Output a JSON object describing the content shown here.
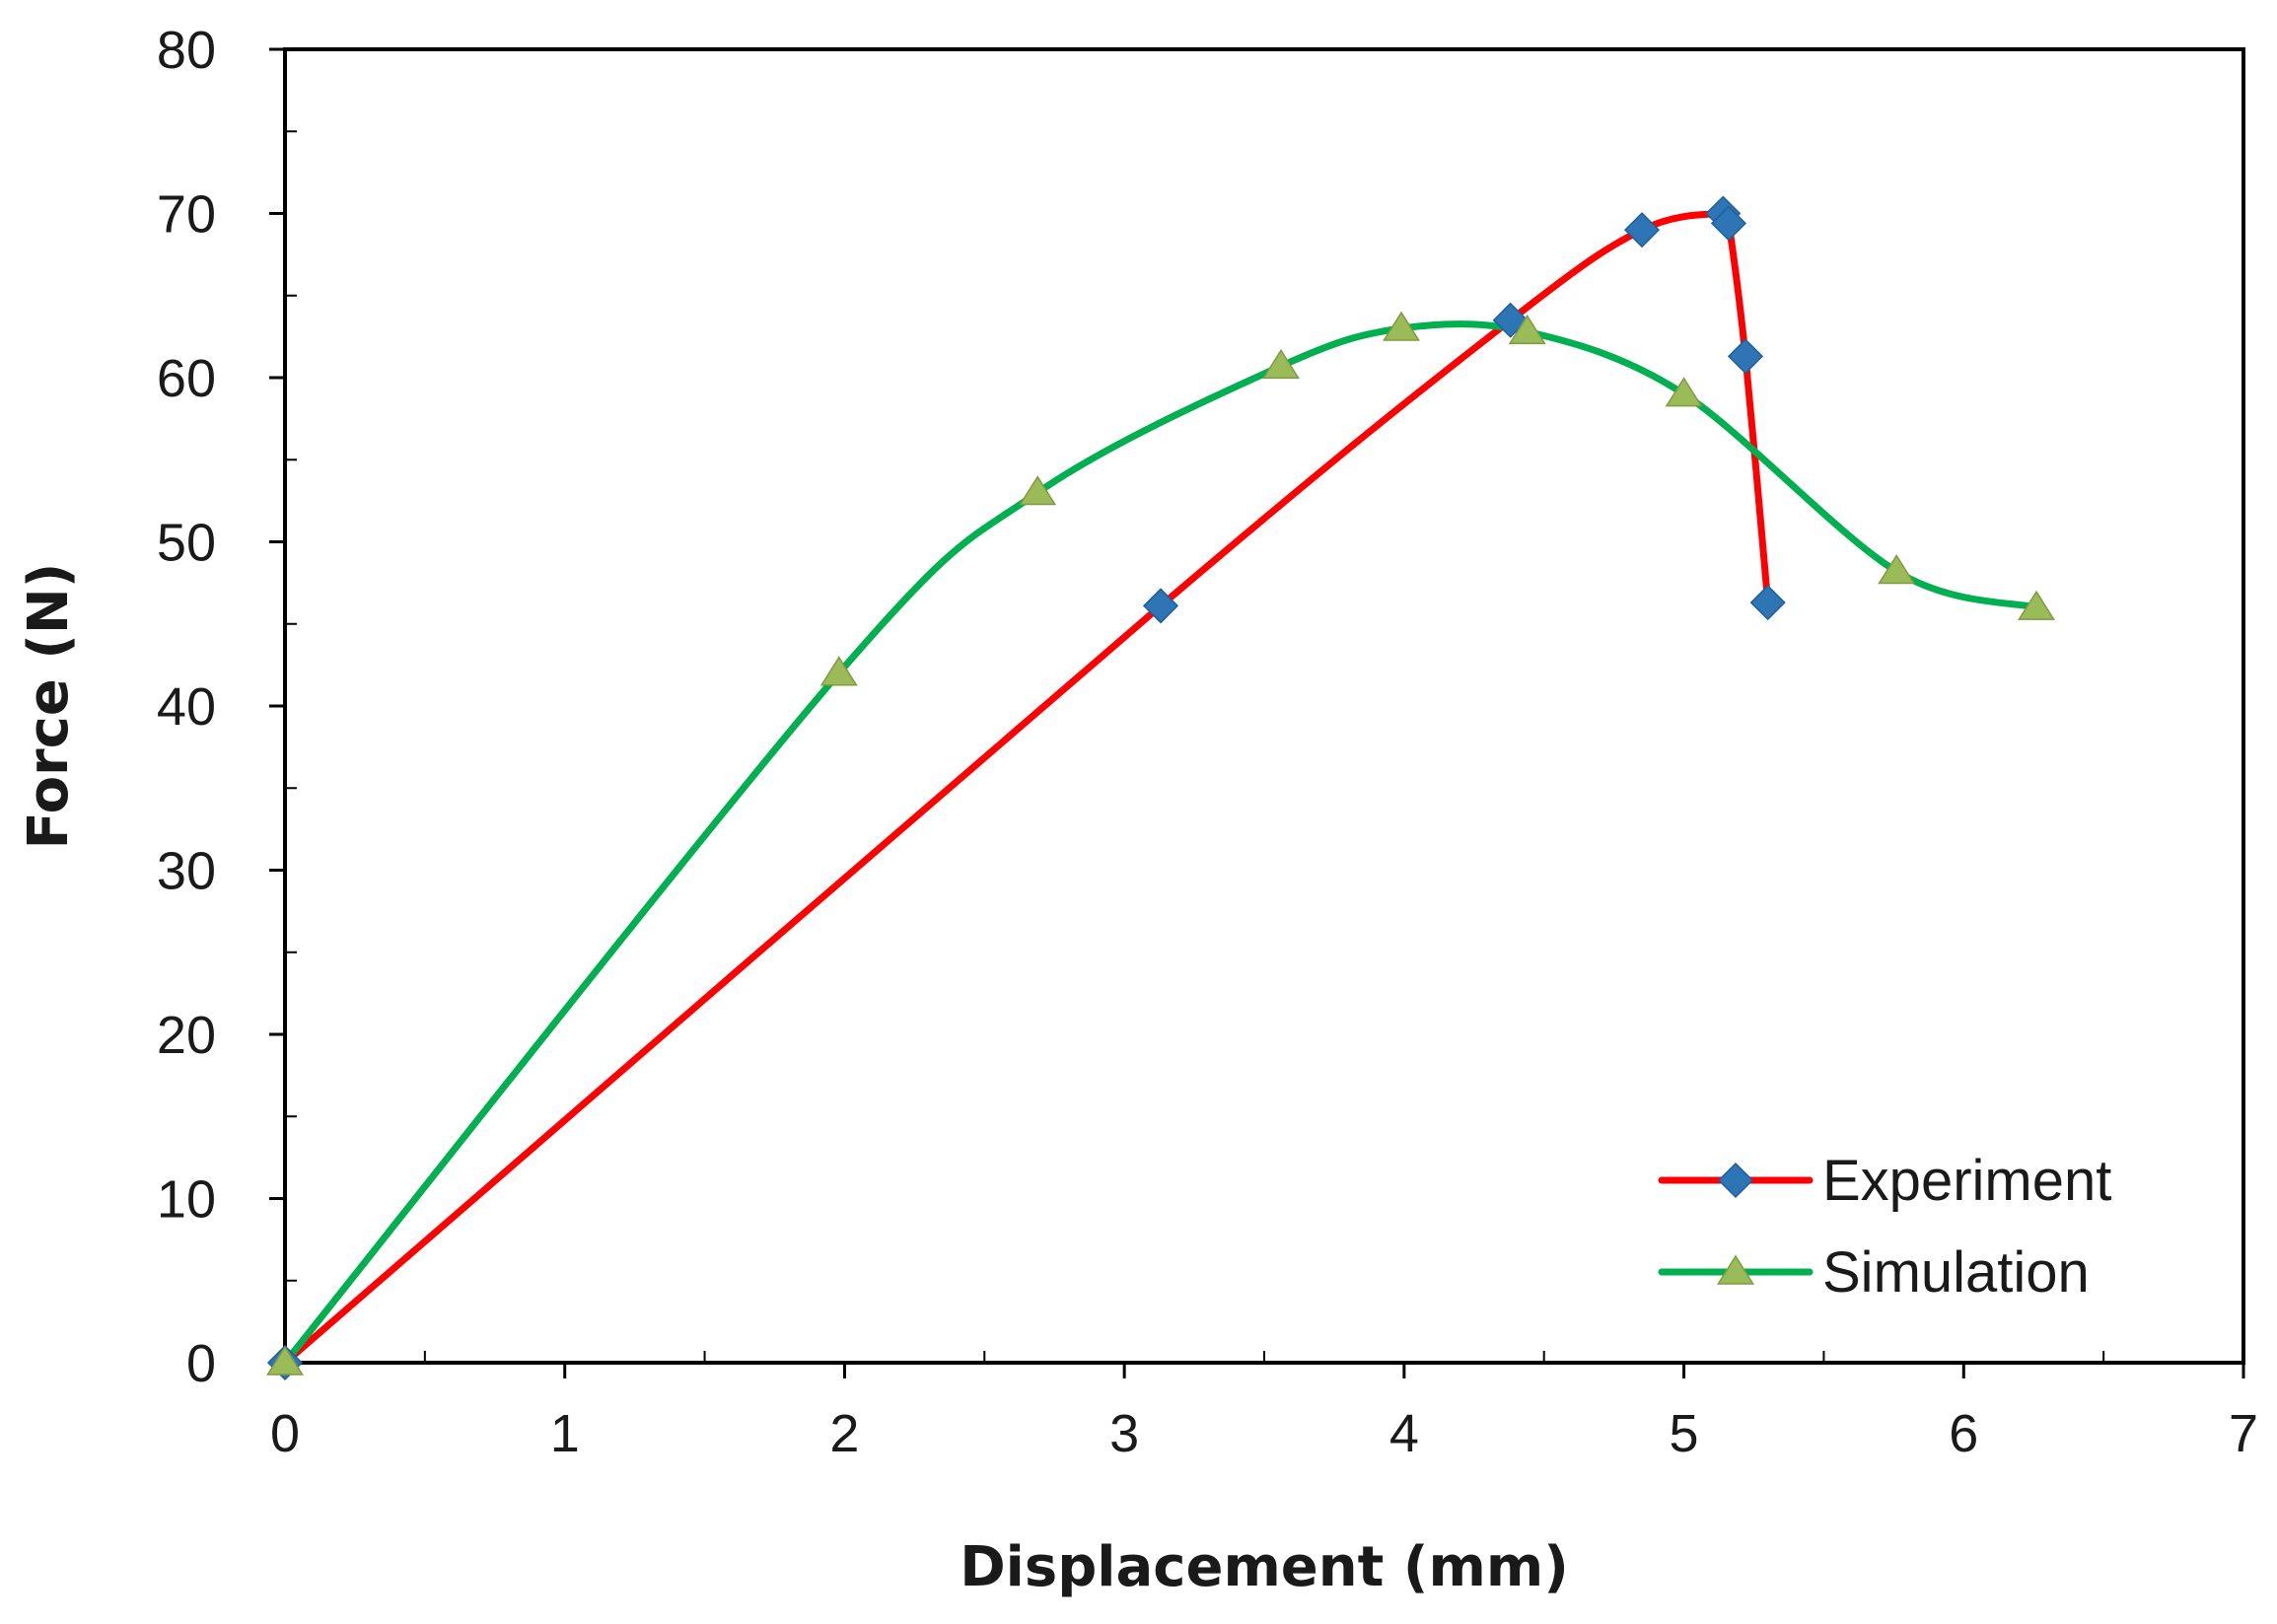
{
  "chart_data": {
    "type": "line",
    "title": "",
    "xlabel": "Displacement (mm)",
    "ylabel": "Force (N)",
    "xlim": [
      0,
      7
    ],
    "ylim": [
      0,
      80
    ],
    "x_ticks": [
      0,
      1,
      2,
      3,
      4,
      5,
      6,
      7
    ],
    "y_ticks": [
      0,
      10,
      20,
      30,
      40,
      50,
      60,
      70,
      80
    ],
    "x_tick_labels": [
      "0",
      "1",
      "2",
      "3",
      "4",
      "5",
      "6",
      "7"
    ],
    "y_tick_labels": [
      "0",
      "10",
      "20",
      "30",
      "40",
      "50",
      "60",
      "70",
      "80"
    ],
    "x_minor_step": 0.5,
    "y_minor_step": 5,
    "grid": false,
    "legend_position": "bottom-right",
    "series": [
      {
        "name": "Experiment",
        "color": "#ff0000",
        "marker": "diamond",
        "marker_color": "#2e75b6",
        "points": [
          {
            "x": 0,
            "y": 0
          },
          {
            "x": 3.13,
            "y": 46.1
          },
          {
            "x": 4.38,
            "y": 63.5
          },
          {
            "x": 4.85,
            "y": 69.0
          },
          {
            "x": 5.14,
            "y": 70.0
          },
          {
            "x": 5.16,
            "y": 69.4
          },
          {
            "x": 5.22,
            "y": 61.3
          },
          {
            "x": 5.3,
            "y": 46.3
          }
        ]
      },
      {
        "name": "Simulation",
        "color": "#00b050",
        "marker": "triangle",
        "marker_color": "#9bbb59",
        "points": [
          {
            "x": 0,
            "y": 0
          },
          {
            "x": 1.98,
            "y": 42.0
          },
          {
            "x": 2.69,
            "y": 53.0
          },
          {
            "x": 3.56,
            "y": 60.7
          },
          {
            "x": 3.99,
            "y": 63.0
          },
          {
            "x": 4.44,
            "y": 62.8
          },
          {
            "x": 5.0,
            "y": 59.0
          },
          {
            "x": 5.76,
            "y": 48.2
          },
          {
            "x": 6.26,
            "y": 46.0
          }
        ]
      }
    ]
  }
}
